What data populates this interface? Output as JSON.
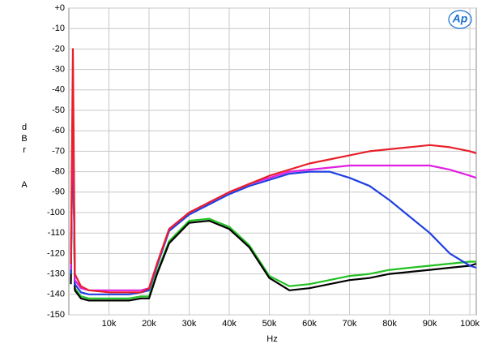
{
  "chart_data": {
    "type": "line",
    "logo": "Ap",
    "y_label": "dBr",
    "y_unit": "A",
    "x_label": "Hz",
    "grid": true,
    "x": [
      500,
      1000,
      1500,
      3000,
      5000,
      10000,
      15000,
      18000,
      20000,
      22000,
      25000,
      30000,
      35000,
      40000,
      45000,
      50000,
      55000,
      60000,
      65000,
      70000,
      75000,
      80000,
      85000,
      90000,
      95000,
      100000,
      101600
    ],
    "xlim": [
      0,
      101600
    ],
    "xticks": [
      {
        "value": 10000,
        "label": "10k"
      },
      {
        "value": 20000,
        "label": "20k"
      },
      {
        "value": 30000,
        "label": "30k"
      },
      {
        "value": 40000,
        "label": "40k"
      },
      {
        "value": 50000,
        "label": "50k"
      },
      {
        "value": 60000,
        "label": "60k"
      },
      {
        "value": 70000,
        "label": "70k"
      },
      {
        "value": 80000,
        "label": "80k"
      },
      {
        "value": 90000,
        "label": "90k"
      },
      {
        "value": 100000,
        "label": "100k"
      }
    ],
    "ylim": [
      -150,
      0
    ],
    "yticks": [
      {
        "value": 0,
        "label": "+0"
      },
      -10,
      -20,
      -30,
      -40,
      -50,
      -60,
      -70,
      -80,
      -90,
      -100,
      -110,
      -120,
      -130,
      -140,
      -150
    ],
    "series": [
      {
        "color": "#22c022",
        "values": [
          -134,
          -45,
          -137,
          -141,
          -142,
          -142,
          -142,
          -141,
          -141,
          -129,
          -114,
          -104,
          -103,
          -107,
          -116,
          -131,
          -136,
          -135,
          -133,
          -131,
          -130,
          -128,
          -127,
          -126,
          -125,
          -124,
          -124
        ]
      },
      {
        "color": "#000000",
        "values": [
          -135,
          -43,
          -138,
          -142,
          -143,
          -143,
          -143,
          -142,
          -142,
          -130,
          -115,
          -105,
          -104,
          -108,
          -117,
          -132,
          -138,
          -137,
          -135,
          -133,
          -132,
          -130,
          -129,
          -128,
          -127,
          -126,
          -125
        ]
      },
      {
        "color": "#2040e0",
        "values": [
          -130,
          -44,
          -135,
          -139,
          -140,
          -140,
          -140,
          -139,
          -138,
          -126,
          -109,
          -101,
          -96,
          -91,
          -87,
          -84,
          -81,
          -80,
          -80,
          -83,
          -87,
          -94,
          -102,
          -110,
          -120,
          -126,
          -127
        ]
      },
      {
        "color": "#e020e0",
        "values": [
          -128,
          -44,
          -133,
          -137,
          -138,
          -138,
          -138,
          -138,
          -137,
          -125,
          -108,
          -100,
          -95,
          -90,
          -86,
          -83,
          -80,
          -79,
          -78,
          -77,
          -77,
          -77,
          -77,
          -77,
          -79,
          -82,
          -83
        ]
      },
      {
        "color": "#e8202a",
        "values": [
          -125,
          -20,
          -130,
          -136,
          -138,
          -139,
          -139,
          -139,
          -137,
          -125,
          -108,
          -100,
          -95,
          -90,
          -86,
          -82,
          -79,
          -76,
          -74,
          -72,
          -70,
          -69,
          -68,
          -67,
          -68,
          -70,
          -71
        ]
      }
    ]
  }
}
